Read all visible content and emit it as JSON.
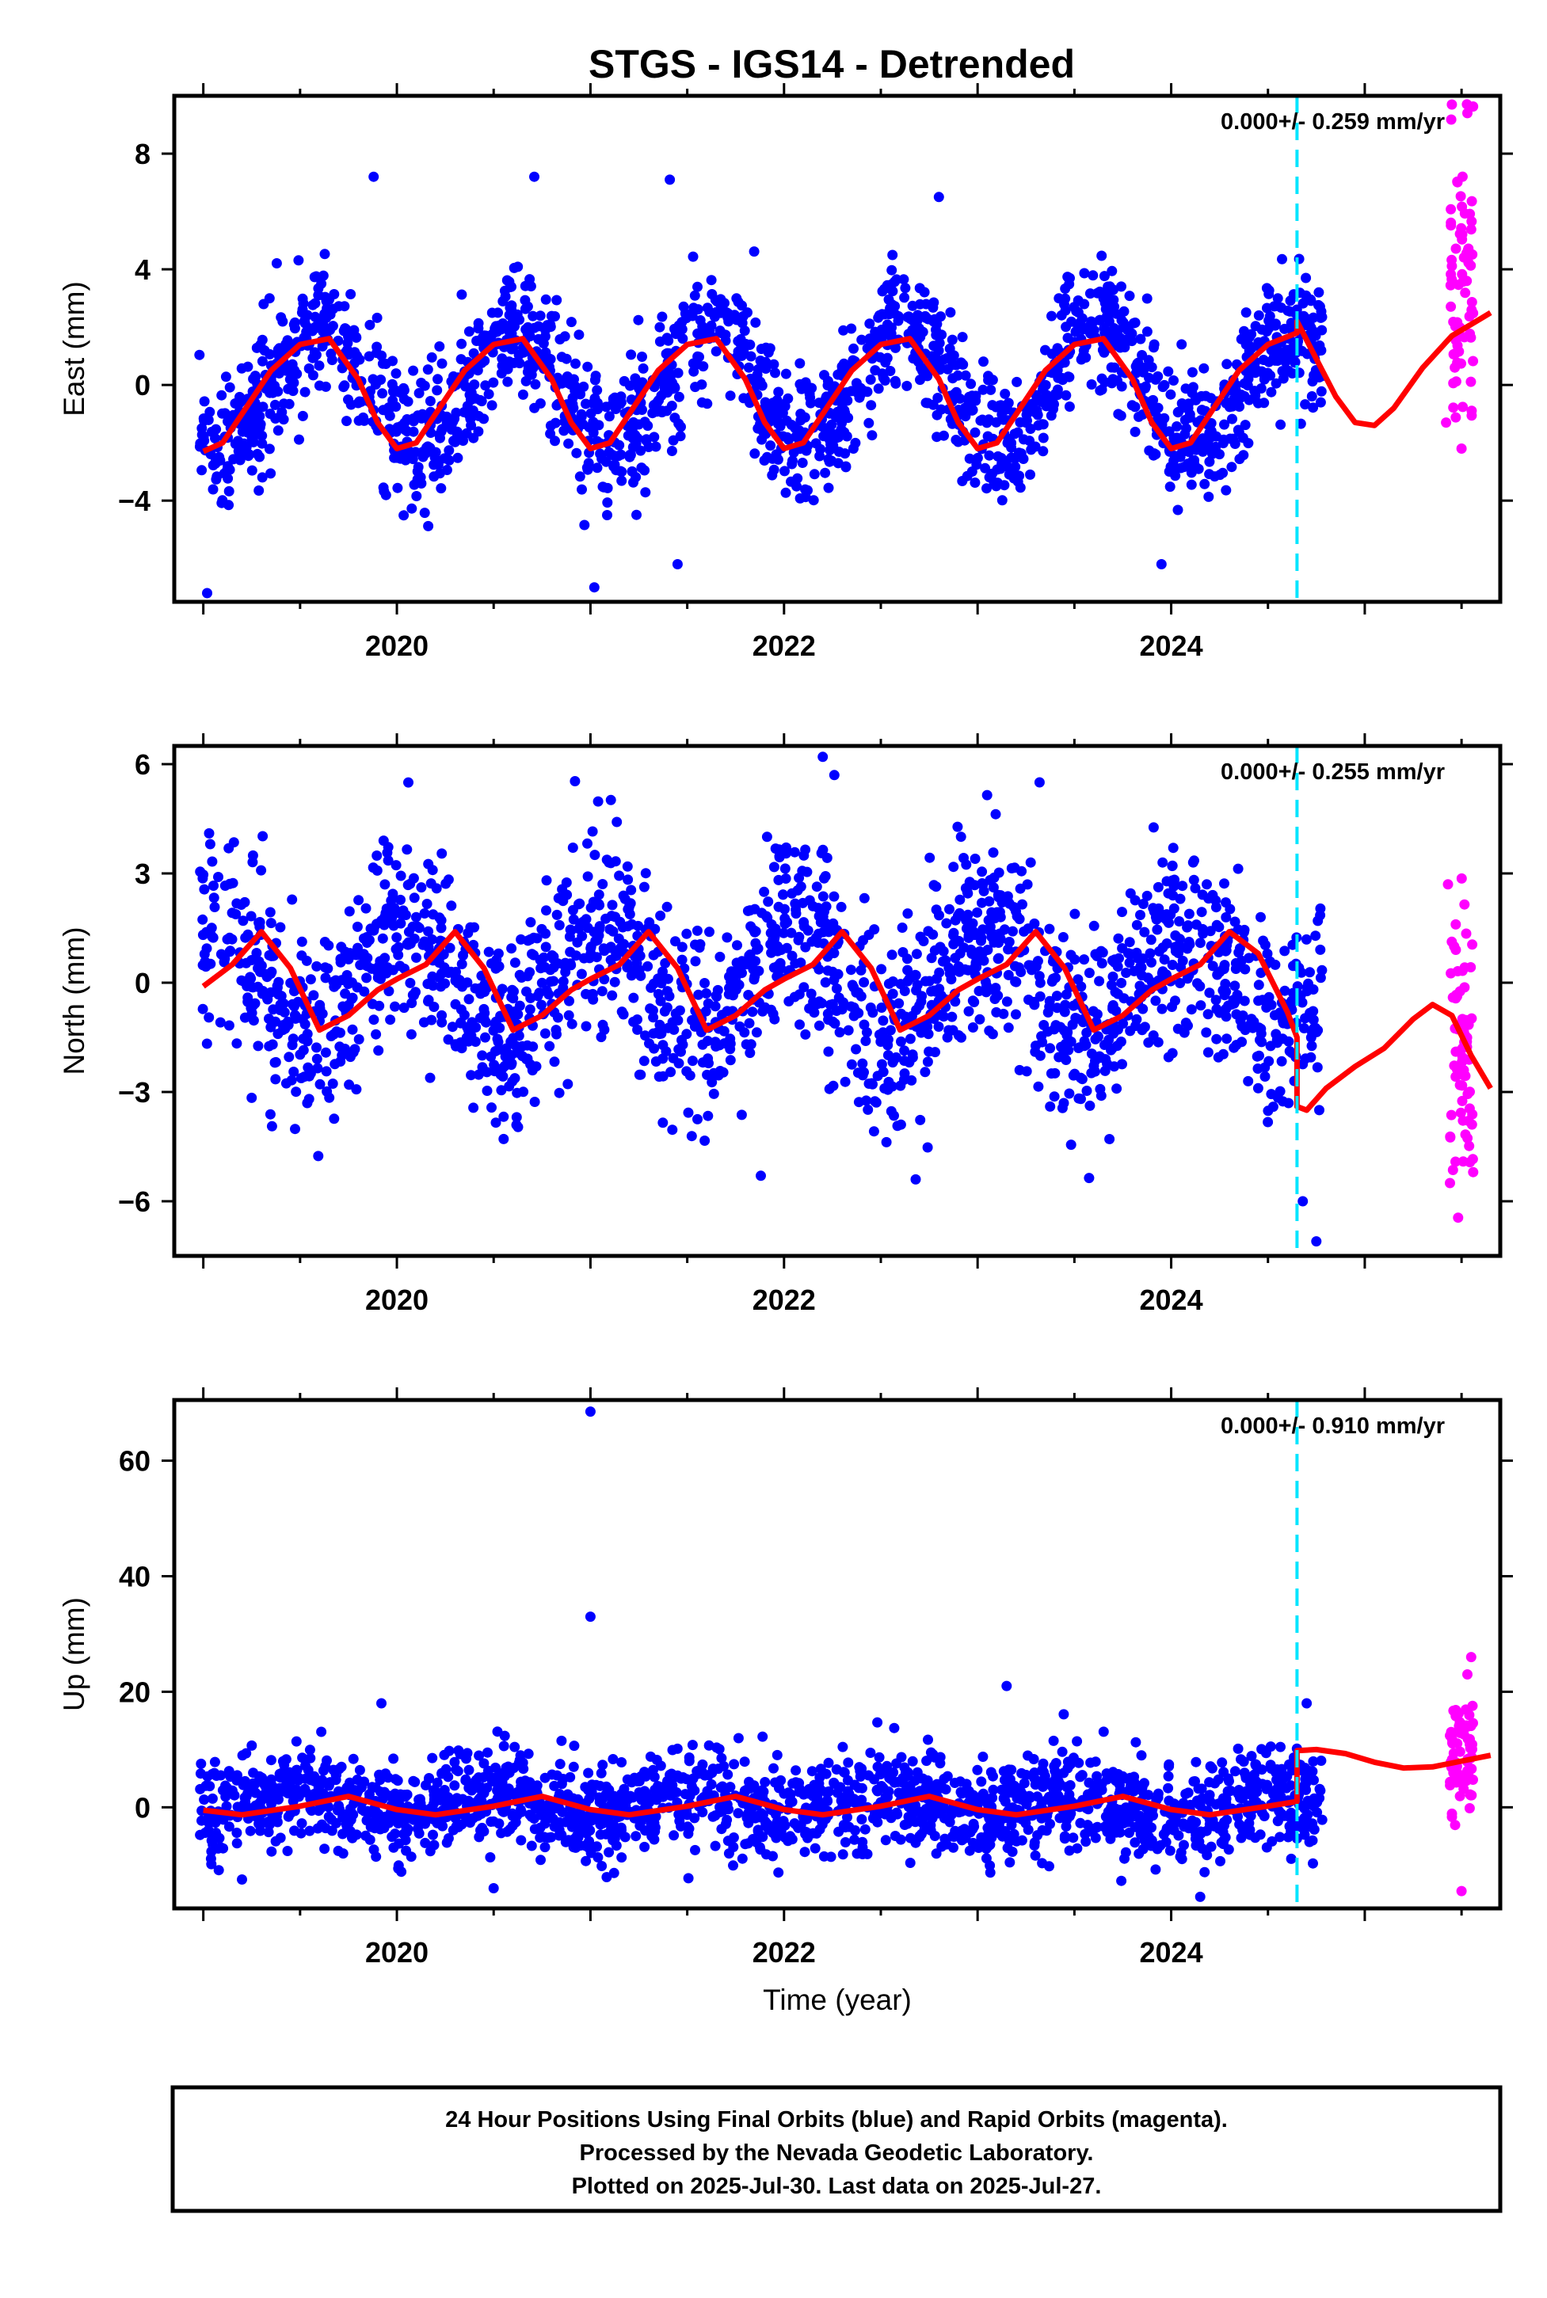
{
  "title": "STGS - IGS14 - Detrended",
  "colors": {
    "final_points": "#0000ff",
    "rapid_points": "#ff00ff",
    "model_line": "#ff0000",
    "break_line": "#00e5ff",
    "frame": "#000000"
  },
  "chart_data": [
    {
      "type": "scatter",
      "component": "east",
      "ylabel": "East (mm)",
      "xlabel": "",
      "rate_text": "0.000+/- 0.259 mm/yr",
      "xlim": [
        2018.85,
        2025.7
      ],
      "ylim": [
        -7.5,
        10.0
      ],
      "yticks": [
        8,
        4,
        0,
        -4
      ],
      "ytick_labels": [
        "8",
        "4",
        "0",
        "−4"
      ],
      "xticks": [
        2020,
        2022,
        2024
      ],
      "xtick_labels": [
        "2020",
        "2022",
        "2024"
      ],
      "break_epoch": 2024.65,
      "model": {
        "break": 2024.65,
        "pre": {
          "x": [
            2019.0,
            2019.1,
            2019.2,
            2019.35,
            2019.5,
            2019.65,
            2019.8,
            2019.9,
            2020.0,
            2020.1,
            2020.2,
            2020.35,
            2020.5,
            2020.65,
            2020.8,
            2020.9,
            2021.0,
            2021.1,
            2021.2,
            2021.35,
            2021.5,
            2021.65,
            2021.8,
            2021.9,
            2022.0,
            2022.1,
            2022.2,
            2022.35,
            2022.5,
            2022.65,
            2022.8,
            2022.9,
            2023.0,
            2023.1,
            2023.2,
            2023.35,
            2023.5,
            2023.65,
            2023.8,
            2023.9,
            2024.0,
            2024.1,
            2024.2,
            2024.35,
            2024.5,
            2024.65
          ],
          "y": [
            -2.3,
            -2.0,
            -1.0,
            0.5,
            1.4,
            1.6,
            0.2,
            -1.3,
            -2.2,
            -2.0,
            -1.0,
            0.5,
            1.4,
            1.6,
            0.2,
            -1.3,
            -2.2,
            -2.0,
            -1.0,
            0.5,
            1.4,
            1.6,
            0.2,
            -1.3,
            -2.2,
            -2.0,
            -1.0,
            0.5,
            1.4,
            1.6,
            0.2,
            -1.3,
            -2.2,
            -2.0,
            -1.0,
            0.5,
            1.4,
            1.6,
            0.2,
            -1.3,
            -2.2,
            -2.0,
            -1.0,
            0.5,
            1.4,
            1.8
          ]
        },
        "post": {
          "x": [
            2024.65,
            2024.75,
            2024.85,
            2024.95,
            2025.05,
            2025.15,
            2025.3,
            2025.45,
            2025.6,
            2025.65
          ],
          "y": [
            2.2,
            0.9,
            -0.4,
            -1.3,
            -1.4,
            -0.8,
            0.6,
            1.7,
            2.3,
            2.5
          ]
        }
      },
      "series": [
        {
          "kind": "final",
          "amp": 2.0,
          "phase": 0.12,
          "noise": 1.15,
          "x_start": 2018.98,
          "x_end": 2024.78,
          "n": 1850,
          "seed": 11,
          "offset": 0,
          "outliers": [
            [
              2019.02,
              -7.2
            ],
            [
              2019.88,
              7.2
            ],
            [
              2021.02,
              -7.0
            ],
            [
              2021.41,
              7.1
            ],
            [
              2022.8,
              6.5
            ],
            [
              2020.71,
              7.2
            ],
            [
              2023.95,
              -6.2
            ],
            [
              2021.45,
              -6.2
            ]
          ]
        },
        {
          "kind": "rapid",
          "amp": 0.0,
          "phase": 0.0,
          "noise": 2.4,
          "x_start": 2025.44,
          "x_end": 2025.56,
          "n": 70,
          "seed": 23,
          "offset": 4.2,
          "outliers": [
            [
              2025.45,
              9.7
            ],
            [
              2025.53,
              9.4
            ],
            [
              2025.5,
              -2.2
            ],
            [
              2025.42,
              -1.3
            ]
          ]
        }
      ]
    },
    {
      "type": "scatter",
      "component": "north",
      "ylabel": "North (mm)",
      "xlabel": "",
      "rate_text": "0.000+/- 0.255 mm/yr",
      "xlim": [
        2018.85,
        2025.7
      ],
      "ylim": [
        -7.5,
        6.5
      ],
      "yticks": [
        6,
        3,
        0,
        -3,
        -6
      ],
      "ytick_labels": [
        "6",
        "3",
        "0",
        "−3",
        "−6"
      ],
      "xticks": [
        2020,
        2022,
        2024
      ],
      "xtick_labels": [
        "2020",
        "2022",
        "2024"
      ],
      "break_epoch": 2024.65,
      "model": {
        "break": 2024.65,
        "pre": {
          "x": [
            2019.0,
            2019.15,
            2019.3,
            2019.45,
            2019.6,
            2019.75,
            2019.9,
            2020.0,
            2020.15,
            2020.3,
            2020.45,
            2020.6,
            2020.75,
            2020.9,
            2021.0,
            2021.15,
            2021.3,
            2021.45,
            2021.6,
            2021.75,
            2021.9,
            2022.0,
            2022.15,
            2022.3,
            2022.45,
            2022.6,
            2022.75,
            2022.9,
            2023.0,
            2023.15,
            2023.3,
            2023.45,
            2023.6,
            2023.75,
            2023.9,
            2024.0,
            2024.15,
            2024.3,
            2024.45,
            2024.6,
            2024.65
          ],
          "y": [
            -0.1,
            0.5,
            1.4,
            0.4,
            -1.3,
            -0.9,
            -0.2,
            0.1,
            0.5,
            1.4,
            0.4,
            -1.3,
            -0.9,
            -0.2,
            0.1,
            0.5,
            1.4,
            0.4,
            -1.3,
            -0.9,
            -0.2,
            0.1,
            0.5,
            1.4,
            0.4,
            -1.3,
            -0.9,
            -0.2,
            0.1,
            0.5,
            1.4,
            0.4,
            -1.3,
            -0.9,
            -0.2,
            0.1,
            0.5,
            1.4,
            0.8,
            -0.8,
            -1.5
          ]
        },
        "post": {
          "x": [
            2024.65,
            2024.7,
            2024.8,
            2024.95,
            2025.1,
            2025.25,
            2025.35,
            2025.45,
            2025.55,
            2025.65
          ],
          "y": [
            -3.4,
            -3.5,
            -2.9,
            -2.3,
            -1.8,
            -1.0,
            -0.6,
            -0.9,
            -2.0,
            -2.9
          ]
        }
      },
      "series": [
        {
          "kind": "final",
          "amp": 1.4,
          "phase": 0.55,
          "noise": 1.35,
          "x_start": 2018.98,
          "x_end": 2024.78,
          "n": 1850,
          "seed": 37,
          "offset": 0,
          "outliers": [
            [
              2019.03,
              4.1
            ],
            [
              2022.2,
              6.2
            ],
            [
              2022.26,
              5.7
            ],
            [
              2023.32,
              5.5
            ],
            [
              2021.88,
              -5.3
            ],
            [
              2022.68,
              -5.4
            ],
            [
              2024.68,
              -6.0
            ],
            [
              2024.75,
              -7.1
            ]
          ]
        },
        {
          "kind": "rapid",
          "amp": 0.0,
          "phase": 0.0,
          "noise": 1.9,
          "x_start": 2025.44,
          "x_end": 2025.56,
          "n": 70,
          "seed": 41,
          "offset": -2.0,
          "outliers": [
            [
              2025.43,
              2.7
            ],
            [
              2025.47,
              1.6
            ],
            [
              2025.44,
              -5.5
            ],
            [
              2025.56,
              -5.2
            ]
          ]
        }
      ]
    },
    {
      "type": "scatter",
      "component": "up",
      "ylabel": "Up (mm)",
      "xlabel": "Time (year)",
      "rate_text": "0.000+/- 0.910 mm/yr",
      "xlim": [
        2018.85,
        2025.7
      ],
      "ylim": [
        -17.5,
        70.5
      ],
      "yticks": [
        60,
        40,
        20,
        0
      ],
      "ytick_labels": [
        "60",
        "40",
        "20",
        "0"
      ],
      "xticks": [
        2020,
        2022,
        2024
      ],
      "xtick_labels": [
        "2020",
        "2022",
        "2024"
      ],
      "break_epoch": 2024.65,
      "model": {
        "break": 2024.65,
        "pre": {
          "x": [
            2019.0,
            2019.2,
            2019.5,
            2019.75,
            2020.0,
            2020.2,
            2020.5,
            2020.75,
            2021.0,
            2021.2,
            2021.5,
            2021.75,
            2022.0,
            2022.2,
            2022.5,
            2022.75,
            2023.0,
            2023.2,
            2023.5,
            2023.75,
            2024.0,
            2024.2,
            2024.5,
            2024.65
          ],
          "y": [
            -0.5,
            -1.3,
            0.2,
            1.9,
            -0.4,
            -1.3,
            0.2,
            1.9,
            -0.4,
            -1.3,
            0.2,
            1.9,
            -0.4,
            -1.3,
            0.2,
            1.9,
            -0.4,
            -1.3,
            0.2,
            1.9,
            -0.4,
            -1.3,
            0.2,
            1.0
          ]
        },
        "post": {
          "x": [
            2024.65,
            2024.75,
            2024.9,
            2025.05,
            2025.2,
            2025.35,
            2025.5,
            2025.65
          ],
          "y": [
            9.8,
            10.0,
            9.3,
            7.8,
            6.8,
            7.0,
            8.0,
            9.0
          ]
        }
      },
      "series": [
        {
          "kind": "final",
          "amp": 1.8,
          "phase": 0.0,
          "noise": 4.2,
          "x_start": 2018.98,
          "x_end": 2024.78,
          "n": 1850,
          "seed": 53,
          "offset": 0.5,
          "outliers": [
            [
              2021.0,
              68.5
            ],
            [
              2021.0,
              33.0
            ],
            [
              2019.92,
              18.0
            ],
            [
              2023.15,
              21.0
            ],
            [
              2024.7,
              18.0
            ],
            [
              2024.15,
              -15.5
            ],
            [
              2019.2,
              -12.5
            ],
            [
              2020.5,
              -14.0
            ]
          ]
        },
        {
          "kind": "rapid",
          "amp": 0.0,
          "phase": 0.0,
          "noise": 5.0,
          "x_start": 2025.44,
          "x_end": 2025.56,
          "n": 70,
          "seed": 67,
          "offset": 8.5,
          "outliers": [
            [
              2025.55,
              26.0
            ],
            [
              2025.53,
              23.0
            ],
            [
              2025.5,
              -14.5
            ]
          ]
        }
      ]
    }
  ],
  "footer": {
    "line1": "24 Hour Positions Using Final Orbits (blue) and Rapid Orbits (magenta).",
    "line2": "Processed by the Nevada Geodetic Laboratory.",
    "line3": "Plotted on 2025-Jul-30. Last data on 2025-Jul-27."
  }
}
